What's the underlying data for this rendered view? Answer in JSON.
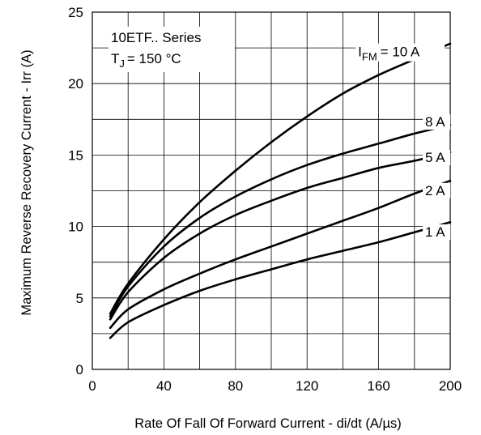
{
  "chart_data": {
    "type": "line",
    "xlabel": "Rate Of Fall Of Forward Current - di/dt (A/µs)",
    "ylabel": "Maximum Reverse Recovery Current - Irr (A)",
    "xlim": [
      0,
      200
    ],
    "ylim": [
      0,
      25
    ],
    "x_ticks": [
      "0",
      "40",
      "80",
      "120",
      "160",
      "200"
    ],
    "y_ticks": [
      "0",
      "5",
      "10",
      "15",
      "20",
      "25"
    ],
    "grid": true,
    "annotation": {
      "series_line": "10ETF.. Series",
      "temp_prefix": "T",
      "temp_sub": "J",
      "temp_value": "= 150 °C"
    },
    "curve_label_prefix": "I",
    "curve_label_sub": "FM",
    "series": [
      {
        "name": "10 A",
        "label": "= 10 A",
        "x": [
          10,
          20,
          40,
          60,
          80,
          100,
          120,
          140,
          160,
          180,
          200
        ],
        "values": [
          3.9,
          6.0,
          9.1,
          11.7,
          13.9,
          15.9,
          17.7,
          19.3,
          20.6,
          21.7,
          22.8
        ]
      },
      {
        "name": "8 A",
        "label": "8 A",
        "x": [
          10,
          20,
          40,
          60,
          80,
          100,
          120,
          140,
          160,
          180,
          200
        ],
        "values": [
          3.7,
          5.8,
          8.6,
          10.6,
          12.1,
          13.3,
          14.3,
          15.1,
          15.8,
          16.5,
          17.1
        ]
      },
      {
        "name": "5 A",
        "label": "5 A",
        "x": [
          10,
          20,
          40,
          60,
          80,
          100,
          120,
          140,
          160,
          180,
          200
        ],
        "values": [
          3.5,
          5.4,
          7.8,
          9.5,
          10.8,
          11.8,
          12.7,
          13.4,
          14.1,
          14.6,
          15.2
        ]
      },
      {
        "name": "2 A",
        "label": "2 A",
        "x": [
          10,
          20,
          40,
          60,
          80,
          100,
          120,
          140,
          160,
          180,
          200
        ],
        "values": [
          2.9,
          4.2,
          5.6,
          6.7,
          7.7,
          8.6,
          9.5,
          10.4,
          11.3,
          12.3,
          13.2
        ]
      },
      {
        "name": "1 A",
        "label": "1 A",
        "x": [
          10,
          20,
          40,
          60,
          80,
          100,
          120,
          140,
          160,
          180,
          200
        ],
        "values": [
          2.2,
          3.3,
          4.5,
          5.5,
          6.3,
          7.0,
          7.7,
          8.3,
          8.9,
          9.6,
          10.3
        ]
      }
    ]
  }
}
